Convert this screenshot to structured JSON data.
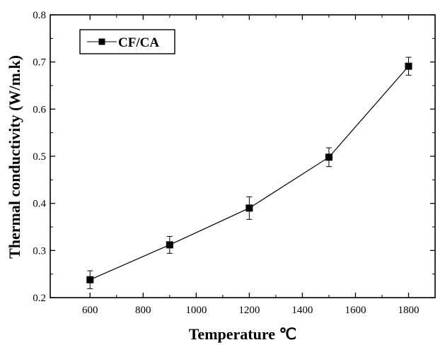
{
  "chart_data": {
    "type": "line",
    "title": "",
    "xlabel": "Temperature ℃",
    "ylabel": "Thermal conductivity (W/m.k)",
    "xlim": [
      450,
      1900
    ],
    "ylim": [
      0.2,
      0.8
    ],
    "x_ticks": [
      600,
      800,
      1000,
      1200,
      1400,
      1600,
      1800
    ],
    "y_ticks": [
      0.2,
      0.3,
      0.4,
      0.5,
      0.6,
      0.7,
      0.8
    ],
    "x_tick_labels": [
      "600",
      "800",
      "1000",
      "1200",
      "1400",
      "1600",
      "1800"
    ],
    "y_tick_labels": [
      "0.2",
      "0.3",
      "0.4",
      "0.5",
      "0.6",
      "0.7",
      "0.8"
    ],
    "grid": false,
    "legend_position": "top-left",
    "series": [
      {
        "name": "CF/CA",
        "marker": "square",
        "color": "#000000",
        "x": [
          600,
          900,
          1200,
          1500,
          1800
        ],
        "y": [
          0.238,
          0.312,
          0.39,
          0.498,
          0.691
        ],
        "error": [
          0.019,
          0.018,
          0.024,
          0.02,
          0.019
        ]
      }
    ]
  }
}
